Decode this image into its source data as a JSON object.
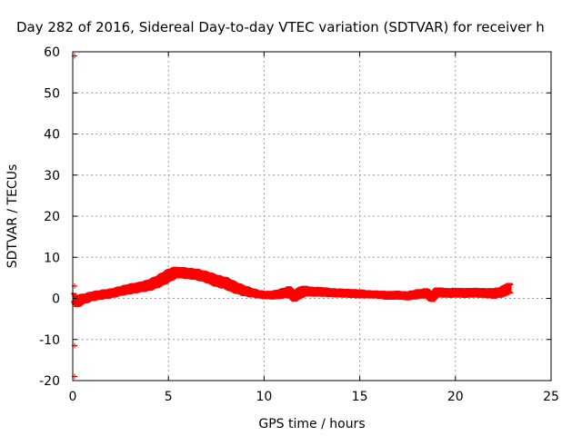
{
  "chart_data": {
    "type": "scatter",
    "title": "Day 282 of 2016, Sidereal Day-to-day VTEC variation (SDTVAR) for receiver h",
    "xlabel": "GPS time / hours",
    "ylabel": "SDTVAR / TECUs",
    "xlim": [
      0,
      25
    ],
    "ylim": [
      -20,
      60
    ],
    "xticks": [
      0,
      5,
      10,
      15,
      20,
      25
    ],
    "yticks": [
      -20,
      -10,
      0,
      10,
      20,
      30,
      40,
      50,
      60
    ],
    "grid": true,
    "series": [
      {
        "name": "SDTVAR",
        "color": "#ff0000",
        "x": [
          0.05,
          0.1,
          0.2,
          0.3,
          0.5,
          0.8,
          1.0,
          1.5,
          2.0,
          2.5,
          3.0,
          3.5,
          4.0,
          4.5,
          5.0,
          5.3,
          5.6,
          6.0,
          6.5,
          7.0,
          7.5,
          8.0,
          8.5,
          9.0,
          9.5,
          10.0,
          10.5,
          11.0,
          11.3,
          11.6,
          11.9,
          12.2,
          12.5,
          13.0,
          13.5,
          14.0,
          14.5,
          15.0,
          15.5,
          16.0,
          16.5,
          17.0,
          17.5,
          18.0,
          18.5,
          18.8,
          19.0,
          19.3,
          19.6,
          20.0,
          20.5,
          21.0,
          21.5,
          22.0,
          22.3,
          22.6,
          22.8,
          22.9
        ],
        "y": [
          0.2,
          -0.3,
          -0.8,
          -0.5,
          -0.2,
          0.2,
          0.5,
          0.9,
          1.2,
          1.8,
          2.3,
          2.7,
          3.2,
          4.2,
          5.5,
          6.2,
          6.3,
          6.1,
          5.8,
          5.2,
          4.3,
          3.7,
          2.6,
          1.8,
          1.2,
          0.8,
          0.8,
          1.2,
          1.6,
          0.4,
          1.5,
          1.8,
          1.6,
          1.6,
          1.4,
          1.3,
          1.2,
          1.1,
          1.0,
          0.9,
          0.7,
          0.8,
          0.6,
          1.0,
          1.3,
          0.2,
          1.5,
          1.4,
          1.3,
          1.4,
          1.3,
          1.4,
          1.3,
          1.2,
          1.4,
          1.9,
          2.6,
          2.3
        ],
        "spread": [
          1.0,
          1.0,
          1.2,
          1.2,
          1.0,
          0.9,
          0.9,
          0.9,
          0.9,
          0.9,
          1.0,
          1.0,
          1.1,
          1.2,
          1.3,
          1.2,
          1.1,
          1.1,
          1.1,
          1.1,
          1.2,
          1.2,
          1.1,
          1.0,
          0.8,
          0.7,
          0.8,
          1.0,
          1.1,
          1.0,
          1.2,
          1.0,
          0.9,
          0.9,
          0.8,
          0.8,
          0.8,
          0.8,
          0.7,
          0.7,
          0.8,
          0.8,
          0.8,
          0.9,
          0.9,
          1.0,
          1.0,
          0.9,
          0.9,
          0.9,
          0.9,
          0.9,
          0.9,
          1.0,
          1.0,
          1.1,
          1.1,
          1.0
        ]
      }
    ],
    "outliers": [
      {
        "x": 0.0,
        "y": 59
      },
      {
        "x": 0.0,
        "y": 3.0
      },
      {
        "x": 0.0,
        "y": -11.5
      },
      {
        "x": 0.0,
        "y": -19
      }
    ]
  }
}
